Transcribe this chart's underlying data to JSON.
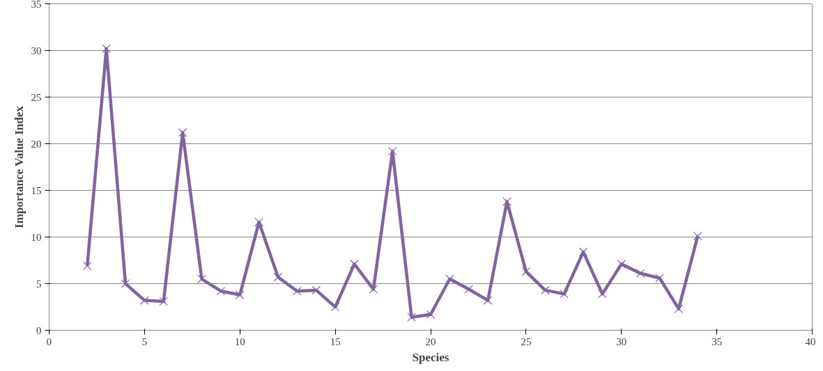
{
  "chart_data": {
    "type": "line",
    "xlabel": "Species",
    "ylabel": "Importance Value Index",
    "x": [
      2,
      3,
      4,
      5,
      6,
      7,
      8,
      9,
      10,
      11,
      12,
      13,
      14,
      15,
      16,
      17,
      18,
      19,
      20,
      21,
      22,
      23,
      24,
      25,
      26,
      27,
      28,
      29,
      30,
      31,
      32,
      33,
      34
    ],
    "series": [
      {
        "color": "#8064a2",
        "values": [
          6.9,
          30.2,
          5.0,
          3.2,
          3.1,
          21.2,
          5.5,
          4.2,
          3.8,
          11.6,
          5.7,
          4.2,
          4.3,
          2.5,
          7.1,
          4.4,
          19.2,
          1.4,
          1.7,
          5.5,
          4.4,
          3.2,
          13.8,
          6.3,
          4.3,
          3.9,
          8.4,
          3.9,
          7.1,
          6.1,
          5.6,
          2.3,
          10.1
        ]
      }
    ],
    "xlim": [
      0,
      40
    ],
    "xticks": [
      0,
      5,
      10,
      15,
      20,
      25,
      30,
      35,
      40
    ],
    "ylim": [
      0,
      35
    ],
    "yticks": [
      0,
      5,
      10,
      15,
      20,
      25,
      30,
      35
    ],
    "grid": "y",
    "marker": "cross",
    "line_style": "solid"
  }
}
